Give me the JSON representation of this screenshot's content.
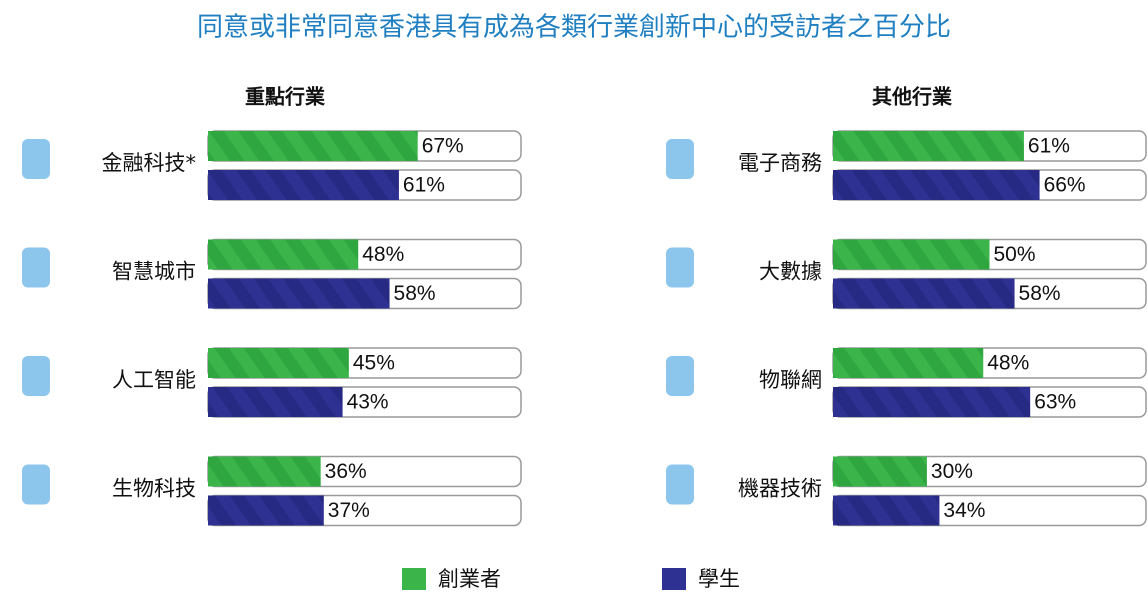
{
  "title": "同意或非常同意香港具有成為各類行業創新中心的受訪者之百分比",
  "legend": [
    {
      "name": "創業者",
      "color": "#3bb54a"
    },
    {
      "name": "學生",
      "color": "#2e3192"
    }
  ],
  "chart_data": [
    {
      "type": "bar",
      "title": "重點行業",
      "xlim": [
        0,
        100
      ],
      "categories": [
        "金融科技*",
        "智慧城市",
        "人工智能",
        "生物科技"
      ],
      "series": [
        {
          "values": [
            67,
            48,
            45,
            36
          ],
          "value_labels": [
            "67%",
            "48%",
            "45%",
            "36%"
          ]
        },
        {
          "values": [
            61,
            58,
            43,
            37
          ],
          "value_labels": [
            "61%",
            "58%",
            "43%",
            "37%"
          ]
        }
      ]
    },
    {
      "type": "bar",
      "title": "其他行業",
      "xlim": [
        0,
        100
      ],
      "categories": [
        "電子商務",
        "大數據",
        "物聯網",
        "機器技術"
      ],
      "series": [
        {
          "values": [
            61,
            50,
            48,
            30
          ],
          "value_labels": [
            "61%",
            "50%",
            "48%",
            "30%"
          ]
        },
        {
          "values": [
            66,
            58,
            63,
            34
          ],
          "value_labels": [
            "66%",
            "58%",
            "63%",
            "34%"
          ]
        }
      ]
    }
  ]
}
